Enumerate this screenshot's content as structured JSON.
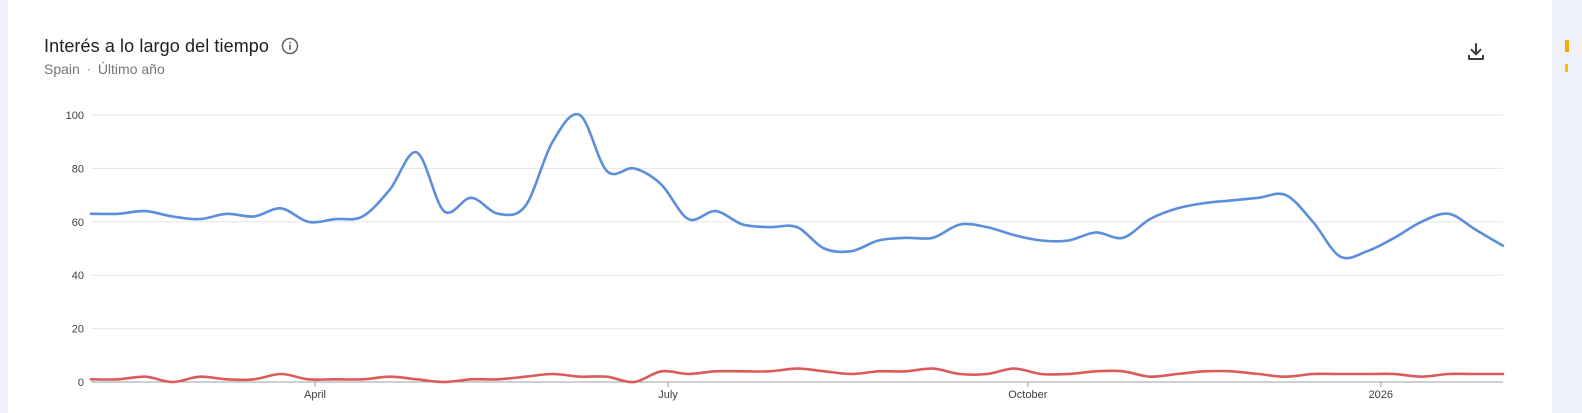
{
  "header": {
    "title": "Interés a lo largo del tiempo",
    "region": "Spain",
    "separator": "·",
    "period": "Último año"
  },
  "icons": {
    "info": "info-icon",
    "download": "download-icon"
  },
  "colors": {
    "series1": "#5b8edb",
    "series2": "#db5b5b",
    "grid": "#e6e6e6",
    "axis": "#9aa0a6"
  },
  "chart_data": {
    "type": "line",
    "ylim": [
      0,
      100
    ],
    "y_ticks": [
      "100",
      "80",
      "60",
      "40",
      "20",
      "0"
    ],
    "x_ticks": [
      {
        "label": "April",
        "week": 8.25
      },
      {
        "label": "July",
        "week": 21.25
      },
      {
        "label": "October",
        "week": 34.5
      },
      {
        "label": "2026",
        "week": 47.5
      }
    ],
    "grid": true,
    "legend": "none",
    "x": [
      0,
      1,
      2,
      3,
      4,
      5,
      6,
      7,
      8,
      9,
      10,
      11,
      12,
      13,
      14,
      15,
      16,
      17,
      18,
      19,
      20,
      21,
      22,
      23,
      24,
      25,
      26,
      27,
      28,
      29,
      30,
      31,
      32,
      33,
      34,
      35,
      36,
      37,
      38,
      39,
      40,
      41,
      42,
      43,
      44,
      45,
      46,
      47,
      48,
      49,
      50,
      51,
      52
    ],
    "series": [
      {
        "values": [
          63,
          63,
          64,
          62,
          61,
          63,
          62,
          65,
          60,
          61,
          62,
          72,
          86,
          64,
          69,
          63,
          66,
          90,
          100,
          79,
          80,
          74,
          61,
          64,
          59,
          58,
          58,
          50,
          49,
          53,
          54,
          54,
          59,
          58,
          55,
          53,
          53,
          56,
          54,
          61,
          65,
          67,
          68,
          69,
          70,
          60,
          47,
          49,
          54,
          60,
          63,
          57,
          51
        ]
      },
      {
        "values": [
          1,
          1,
          2,
          0,
          2,
          1,
          1,
          3,
          1,
          1,
          1,
          2,
          1,
          0,
          1,
          1,
          2,
          3,
          2,
          2,
          0,
          4,
          3,
          4,
          4,
          4,
          5,
          4,
          3,
          4,
          4,
          5,
          3,
          3,
          5,
          3,
          3,
          4,
          4,
          2,
          3,
          4,
          4,
          3,
          2,
          3,
          3,
          3,
          3,
          2,
          3,
          3,
          3
        ]
      }
    ]
  }
}
